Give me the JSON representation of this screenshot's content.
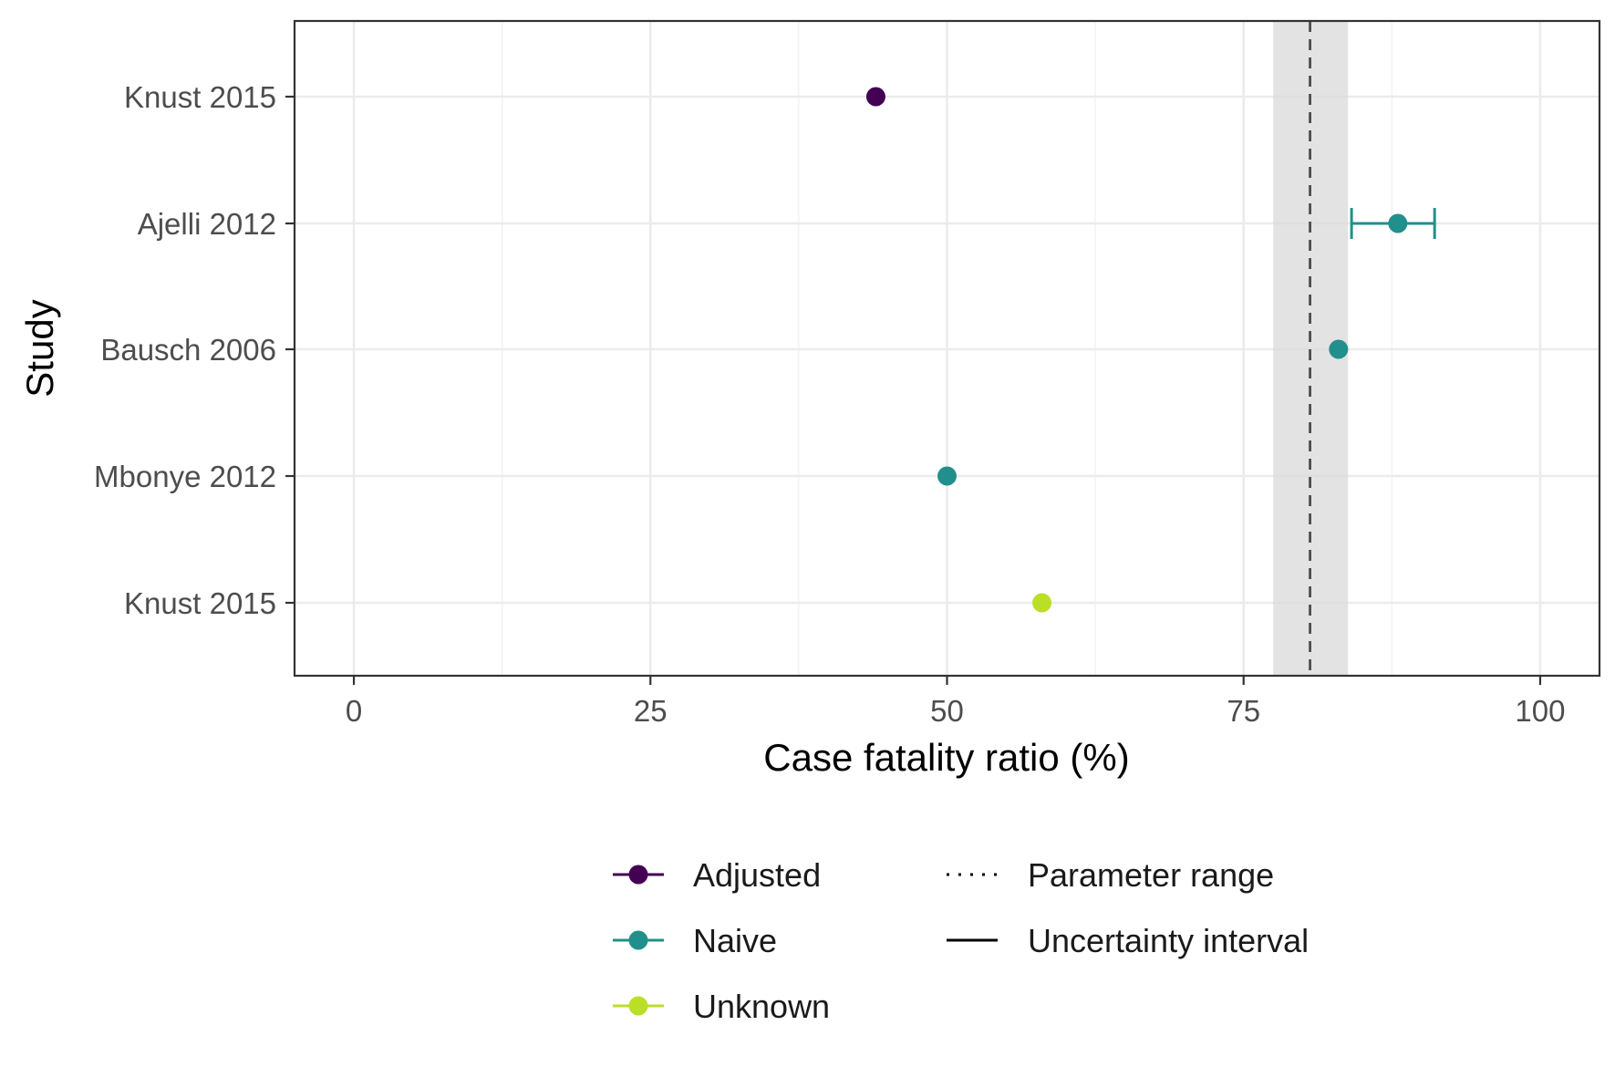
{
  "chart_data": {
    "type": "scatter",
    "xlabel": "Case fatality ratio (%)",
    "ylabel": "Study",
    "xlim": [
      -5,
      105
    ],
    "x_ticks": [
      "0",
      "25",
      "50",
      "75",
      "100"
    ],
    "x_tick_values": [
      0,
      25,
      50,
      75,
      100
    ],
    "categories": [
      "Knust 2015",
      "Ajelli 2012",
      "Bausch 2006",
      "Mbonye 2012",
      "Knust 2015"
    ],
    "grid": true,
    "parameter_range": {
      "lower": 77.5,
      "upper": 83.8,
      "mean": 80.6
    },
    "points": [
      {
        "study": "Knust 2015",
        "x": 44,
        "group": "Adjusted"
      },
      {
        "study": "Ajelli 2012",
        "x": 88,
        "lower": 84.1,
        "upper": 91.1,
        "group": "Naive"
      },
      {
        "study": "Bausch 2006",
        "x": 83,
        "group": "Naive"
      },
      {
        "study": "Mbonye 2012",
        "x": 50,
        "group": "Naive"
      },
      {
        "study": "Knust 2015",
        "x": 58,
        "group": "Unknown"
      }
    ],
    "groups": [
      {
        "name": "Adjusted",
        "color": "#440154"
      },
      {
        "name": "Naive",
        "color": "#21908C"
      },
      {
        "name": "Unknown",
        "color": "#BBDF27"
      }
    ],
    "legend_position": "bottom",
    "legend": {
      "colour_entries": [
        "Adjusted",
        "Naive",
        "Unknown"
      ],
      "line_entries": [
        "Parameter range",
        "Uncertainty interval"
      ]
    }
  }
}
